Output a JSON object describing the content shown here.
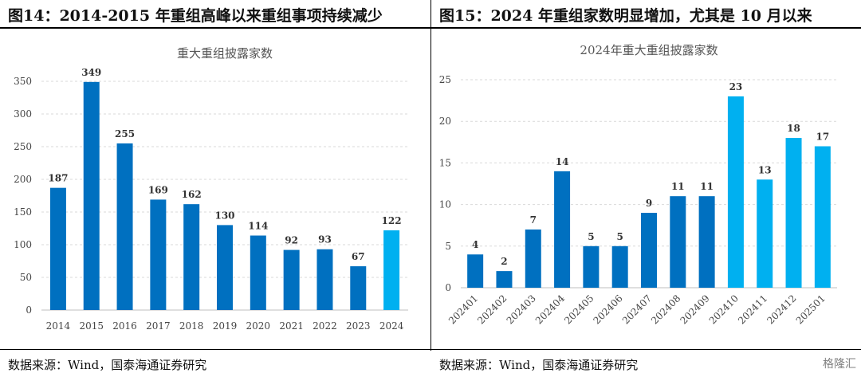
{
  "left": {
    "heading": "图14：2014-2015 年重组高峰以来重组事项持续减少",
    "source": "数据来源：Wind，国泰海通证券研究"
  },
  "right": {
    "heading": "图15：2024 年重组家数明显增加，尤其是 10 月以来",
    "source": "数据来源：Wind，国泰海通证券研究",
    "logo_text": "格隆汇"
  },
  "colors": {
    "dark_blue": "#0070c0",
    "light_blue": "#00b0f0"
  },
  "chart_data": [
    {
      "type": "bar",
      "title": "重大重组披露家数",
      "categories": [
        "2014",
        "2015",
        "2016",
        "2017",
        "2018",
        "2019",
        "2020",
        "2021",
        "2022",
        "2023",
        "2024"
      ],
      "values": [
        187,
        349,
        255,
        169,
        162,
        130,
        114,
        92,
        93,
        67,
        122
      ],
      "highlight": [
        "2024"
      ],
      "ylim": [
        0,
        350
      ],
      "yticks": [
        0,
        50,
        100,
        150,
        200,
        250,
        300,
        350
      ],
      "grid": true
    },
    {
      "type": "bar",
      "title": "2024年重大重组披露家数",
      "categories": [
        "202401",
        "202402",
        "202403",
        "202404",
        "202405",
        "202406",
        "202407",
        "202408",
        "202409",
        "202410",
        "202411",
        "202412",
        "202501"
      ],
      "values": [
        4,
        2,
        7,
        14,
        5,
        5,
        9,
        11,
        11,
        23,
        13,
        18,
        17
      ],
      "highlight": [
        "202410",
        "202411",
        "202412",
        "202501"
      ],
      "ylim": [
        0,
        25
      ],
      "yticks": [
        0,
        5,
        10,
        15,
        20,
        25
      ],
      "grid": true
    }
  ]
}
